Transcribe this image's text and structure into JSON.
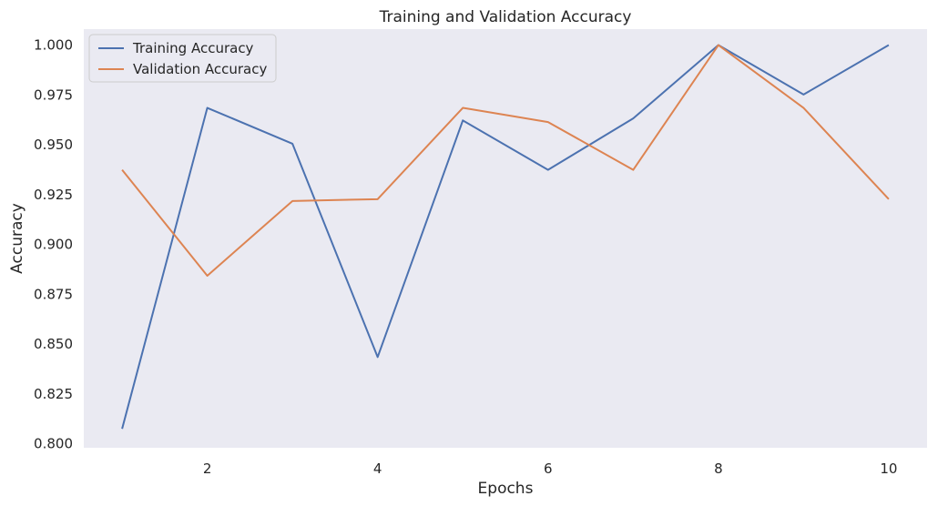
{
  "chart_data": {
    "type": "line",
    "title": "Training and Validation Accuracy",
    "xlabel": "Epochs",
    "ylabel": "Accuracy",
    "x": [
      1,
      2,
      3,
      4,
      5,
      6,
      7,
      8,
      9,
      10
    ],
    "xlim": [
      0.55,
      10.45
    ],
    "ylim": [
      0.798,
      1.008
    ],
    "xticks": [
      2,
      4,
      6,
      8,
      10
    ],
    "xtick_labels": [
      "2",
      "4",
      "6",
      "8",
      "10"
    ],
    "yticks": [
      0.8,
      0.825,
      0.85,
      0.875,
      0.9,
      0.925,
      0.95,
      0.975,
      1.0
    ],
    "ytick_labels": [
      "0.800",
      "0.825",
      "0.850",
      "0.875",
      "0.900",
      "0.925",
      "0.950",
      "0.975",
      "1.000"
    ],
    "grid": false,
    "legend_position": "top-left",
    "series": [
      {
        "name": "Training Accuracy",
        "color": "#4c72b0",
        "values": [
          0.8075,
          0.9685,
          0.9505,
          0.8435,
          0.9622,
          0.9374,
          0.9632,
          1.0,
          0.9752,
          1.0
        ]
      },
      {
        "name": "Validation Accuracy",
        "color": "#dd8452",
        "values": [
          0.9374,
          0.8843,
          0.9218,
          0.9227,
          0.9685,
          0.9614,
          0.9374,
          1.0,
          0.9685,
          0.9227
        ]
      }
    ],
    "plot_background": "#eaeaf2"
  }
}
